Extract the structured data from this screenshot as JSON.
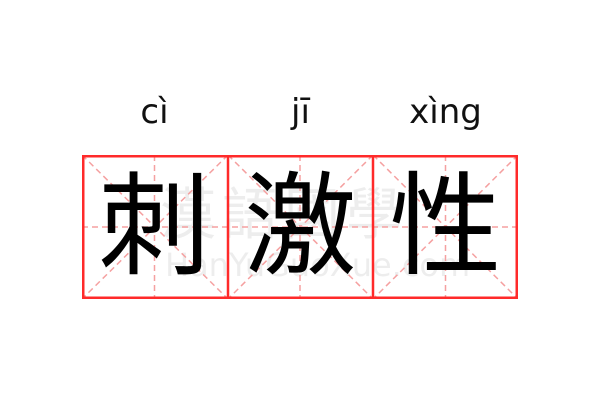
{
  "words": [
    {
      "pinyin": "cì",
      "char": "刺"
    },
    {
      "pinyin": "jī",
      "char": "激"
    },
    {
      "pinyin": "xìng",
      "char": "性"
    }
  ],
  "watermark": {
    "cn": "漢語國學",
    "en": "HanYuGuoXue.com"
  },
  "colors": {
    "border": "#ff2a2a",
    "guide": "#f5a0a0",
    "text": "#000000"
  }
}
